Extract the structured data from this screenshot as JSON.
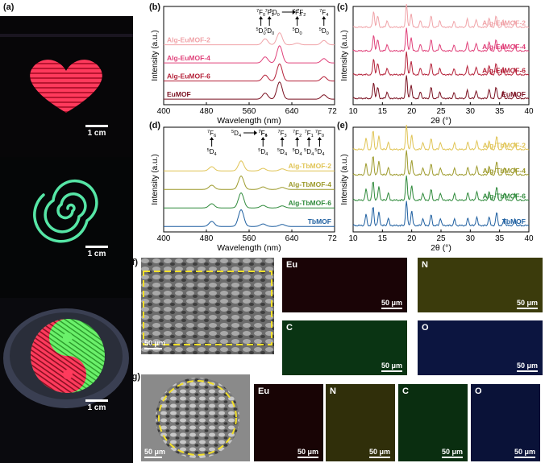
{
  "panels": {
    "a": "(a)",
    "b": "(b)",
    "c": "(c)",
    "d": "(d)",
    "e": "(e)",
    "f": "(f)",
    "g": "(g)"
  },
  "scalebars": {
    "cm": "1 cm",
    "um": "50 μm"
  },
  "elements": {
    "eu": "Eu",
    "n": "N",
    "c": "C",
    "o": "O"
  },
  "colors": {
    "eu_map": "#2a0508",
    "n_map": "#4a4a10",
    "c_map": "#0a3a12",
    "o_map": "#0a1340",
    "heart": "#ff3a5c",
    "spiral": "#56e6a6"
  },
  "chart_data": [
    {
      "id": "b",
      "type": "line",
      "xlabel": "Wavelength (nm)",
      "ylabel": "Intensity (a.u.)",
      "xlim": [
        400,
        720
      ],
      "xticks": [
        400,
        480,
        560,
        640,
        720
      ],
      "series": [
        {
          "name": "Alg-EuMOF-2",
          "color": "#f0a3a8",
          "peaks": [
            [
              590,
              0.35
            ],
            [
              617,
              0.7
            ],
            [
              650,
              0.1
            ],
            [
              700,
              0.25
            ]
          ]
        },
        {
          "name": "Alg-EuMOF-4",
          "color": "#e0417a",
          "peaks": [
            [
              590,
              0.35
            ],
            [
              617,
              1.0
            ],
            [
              700,
              0.25
            ]
          ]
        },
        {
          "name": "Alg-EuMOF-6",
          "color": "#b52038",
          "peaks": [
            [
              590,
              0.35
            ],
            [
              617,
              1.0
            ],
            [
              700,
              0.25
            ]
          ]
        },
        {
          "name": "EuMOF",
          "color": "#7a1020",
          "peaks": [
            [
              590,
              0.35
            ],
            [
              617,
              1.0
            ],
            [
              700,
              0.25
            ]
          ]
        }
      ],
      "annotations": [
        {
          "upper": "7F0",
          "lower": "5D0",
          "x": 582
        },
        {
          "upper": "7F1",
          "lower": "5D0",
          "x": 598
        },
        {
          "upper": "5D0",
          "lower": "7F2",
          "x": 617,
          "arrow": "right"
        },
        {
          "upper": "7F3",
          "lower": "5D0",
          "x": 650
        },
        {
          "upper": "7F4",
          "lower": "5D0",
          "x": 700
        }
      ]
    },
    {
      "id": "c",
      "type": "line",
      "xlabel": "2θ (°)",
      "ylabel": "Intensity (a.u.)",
      "xlim": [
        10,
        40
      ],
      "xticks": [
        10,
        15,
        20,
        25,
        30,
        35,
        40
      ],
      "series": [
        {
          "name": "Alg-EuMOF-2",
          "color": "#f0a3a8"
        },
        {
          "name": "Alg-EuMOF-4",
          "color": "#e0417a"
        },
        {
          "name": "Alg-EuMOF-6",
          "color": "#b52038"
        },
        {
          "name": "EuMOF",
          "color": "#7a1020"
        }
      ],
      "peaks": [
        [
          13.5,
          0.7
        ],
        [
          14.2,
          0.5
        ],
        [
          15.8,
          0.3
        ],
        [
          19.1,
          1.0
        ],
        [
          19.9,
          0.6
        ],
        [
          21.5,
          0.3
        ],
        [
          23.3,
          0.5
        ],
        [
          24.8,
          0.3
        ],
        [
          27.2,
          0.25
        ],
        [
          29.5,
          0.35
        ],
        [
          31,
          0.35
        ],
        [
          33.2,
          0.4
        ],
        [
          34.4,
          0.5
        ],
        [
          35.6,
          0.3
        ],
        [
          37.6,
          0.25
        ]
      ]
    },
    {
      "id": "d",
      "type": "line",
      "xlabel": "Wavelength (nm)",
      "ylabel": "Intensity (a.u.)",
      "xlim": [
        400,
        720
      ],
      "xticks": [
        400,
        480,
        560,
        640,
        720
      ],
      "series": [
        {
          "name": "Alg-TbMOF-2",
          "color": "#e0c455",
          "peaks": [
            [
              490,
              0.25
            ],
            [
              545,
              0.6
            ],
            [
              586,
              0.15
            ],
            [
              622,
              0.12
            ]
          ]
        },
        {
          "name": "Alg-TbMOF-4",
          "color": "#9d9a2b",
          "peaks": [
            [
              490,
              0.25
            ],
            [
              545,
              0.8
            ],
            [
              586,
              0.15
            ],
            [
              622,
              0.12
            ]
          ]
        },
        {
          "name": "Alg-TbMOF-6",
          "color": "#2f8a3b",
          "peaks": [
            [
              490,
              0.25
            ],
            [
              545,
              0.9
            ],
            [
              586,
              0.15
            ],
            [
              622,
              0.12
            ]
          ]
        },
        {
          "name": "TbMOF",
          "color": "#1e5fa0",
          "peaks": [
            [
              490,
              0.3
            ],
            [
              545,
              1.0
            ],
            [
              586,
              0.15
            ],
            [
              622,
              0.12
            ]
          ]
        }
      ],
      "annotations": [
        {
          "upper": "7F6",
          "lower": "5D4",
          "x": 490
        },
        {
          "upper": "5D4",
          "lower": "7F5",
          "x": 545,
          "arrow": "right"
        },
        {
          "upper": "7F4",
          "lower": "5D4",
          "x": 586
        },
        {
          "upper": "7F3",
          "lower": "5D4",
          "x": 622
        },
        {
          "upper": "7F2",
          "lower": "5D4",
          "x": 650
        },
        {
          "upper": "7F1",
          "lower": "5D4",
          "x": 672
        },
        {
          "upper": "7F0",
          "lower": "5D4",
          "x": 692
        }
      ]
    },
    {
      "id": "e",
      "type": "line",
      "xlabel": "2θ (°)",
      "ylabel": "Intensity (a.u.)",
      "xlim": [
        10,
        40
      ],
      "xticks": [
        10,
        15,
        20,
        25,
        30,
        35,
        40
      ],
      "series": [
        {
          "name": "Alg-TbMOF-2",
          "color": "#e0c455"
        },
        {
          "name": "Alg-TbMOF-4",
          "color": "#9d9a2b"
        },
        {
          "name": "Alg-TbMOF-6",
          "color": "#2f8a3b"
        },
        {
          "name": "TbMOF",
          "color": "#1e5fa0"
        }
      ],
      "peaks": [
        [
          12.2,
          0.45
        ],
        [
          13.4,
          0.8
        ],
        [
          14.4,
          0.55
        ],
        [
          16,
          0.3
        ],
        [
          19.1,
          1.0
        ],
        [
          20,
          0.6
        ],
        [
          21.9,
          0.3
        ],
        [
          23.3,
          0.45
        ],
        [
          24.9,
          0.3
        ],
        [
          27.3,
          0.25
        ],
        [
          29.6,
          0.3
        ],
        [
          31.1,
          0.35
        ],
        [
          33.2,
          0.35
        ],
        [
          34.5,
          0.55
        ],
        [
          35.8,
          0.3
        ],
        [
          37.6,
          0.25
        ]
      ]
    }
  ]
}
